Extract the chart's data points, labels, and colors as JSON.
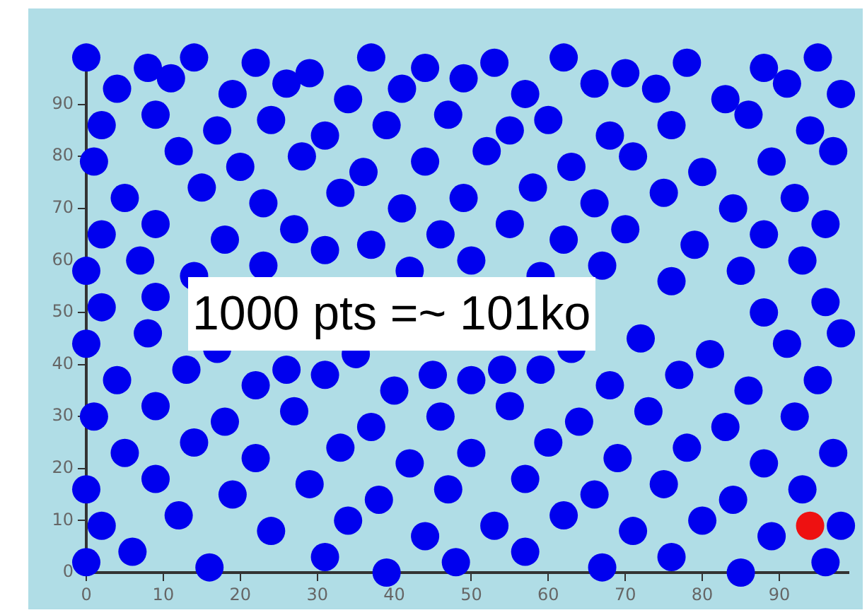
{
  "chart_data": {
    "type": "scatter",
    "marker": "circle",
    "grid": false,
    "legend": false,
    "xlim": [
      0,
      99
    ],
    "ylim": [
      0,
      100
    ],
    "xticks": [
      0,
      10,
      20,
      30,
      40,
      50,
      60,
      70,
      80,
      90
    ],
    "yticks": [
      0,
      10,
      20,
      30,
      40,
      50,
      60,
      70,
      80,
      90
    ],
    "annotations": [
      "1000 pts =~ 101ko"
    ],
    "series": [
      {
        "color": "#ee1111",
        "x": [
          94
        ],
        "values": [
          9
        ]
      },
      {
        "color": "#0000ee",
        "x": [
          0,
          8,
          14,
          22,
          29,
          37,
          44,
          53,
          62,
          70,
          78,
          88,
          95,
          4,
          11,
          19,
          26,
          34,
          41,
          49,
          57,
          66,
          74,
          83,
          91,
          98,
          2,
          9,
          17,
          24,
          31,
          39,
          47,
          55,
          60,
          68,
          76,
          86,
          94,
          1,
          12,
          20,
          28,
          36,
          44,
          52,
          63,
          71,
          80,
          89,
          97,
          5,
          15,
          23,
          33,
          41,
          49,
          58,
          66,
          75,
          84,
          92,
          2,
          9,
          18,
          27,
          37,
          46,
          55,
          62,
          70,
          79,
          88,
          96,
          0,
          7,
          14,
          23,
          31,
          42,
          50,
          59,
          67,
          76,
          85,
          93,
          2,
          9,
          88,
          96,
          0,
          8,
          17,
          26,
          35,
          45,
          54,
          63,
          72,
          81,
          91,
          98,
          4,
          13,
          22,
          31,
          40,
          50,
          59,
          68,
          77,
          86,
          95,
          1,
          9,
          18,
          27,
          37,
          46,
          55,
          64,
          73,
          83,
          92,
          5,
          14,
          22,
          33,
          42,
          50,
          60,
          69,
          78,
          88,
          97,
          0,
          9,
          19,
          29,
          38,
          47,
          57,
          66,
          75,
          84,
          93,
          2,
          12,
          24,
          34,
          44,
          53,
          62,
          71,
          80,
          89,
          98,
          0,
          6,
          16,
          31,
          39,
          48,
          57,
          67,
          76,
          85,
          96
        ],
        "values": [
          99,
          97,
          99,
          98,
          96,
          99,
          97,
          98,
          99,
          96,
          98,
          97,
          99,
          93,
          95,
          92,
          94,
          91,
          93,
          95,
          92,
          94,
          93,
          91,
          94,
          92,
          86,
          88,
          85,
          87,
          84,
          86,
          88,
          85,
          87,
          84,
          86,
          88,
          85,
          79,
          81,
          78,
          80,
          77,
          79,
          81,
          78,
          80,
          77,
          79,
          81,
          72,
          74,
          71,
          73,
          70,
          72,
          74,
          71,
          73,
          70,
          72,
          65,
          67,
          64,
          66,
          63,
          65,
          67,
          64,
          66,
          63,
          65,
          67,
          58,
          60,
          57,
          59,
          62,
          58,
          60,
          57,
          59,
          56,
          58,
          60,
          51,
          53,
          50,
          52,
          44,
          46,
          43,
          39,
          42,
          38,
          39,
          43,
          45,
          42,
          44,
          46,
          37,
          39,
          36,
          38,
          35,
          37,
          39,
          36,
          38,
          35,
          37,
          30,
          32,
          29,
          31,
          28,
          30,
          32,
          29,
          31,
          28,
          30,
          23,
          25,
          22,
          24,
          21,
          23,
          25,
          22,
          24,
          21,
          23,
          16,
          18,
          15,
          17,
          14,
          16,
          18,
          15,
          17,
          14,
          16,
          9,
          11,
          8,
          10,
          7,
          9,
          11,
          8,
          10,
          7,
          9,
          2,
          4,
          1,
          3,
          0,
          2,
          4,
          1,
          3,
          0,
          2
        ]
      }
    ]
  }
}
